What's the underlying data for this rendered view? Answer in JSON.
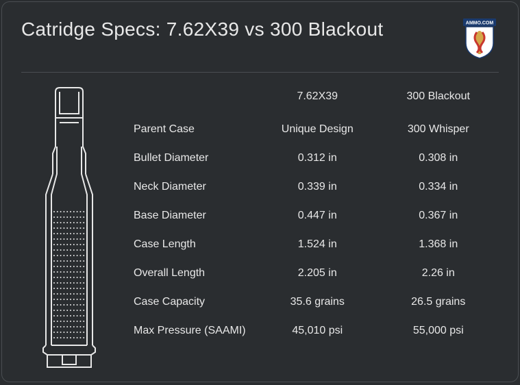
{
  "title": "Catridge Specs: 7.62X39 vs 300 Blackout",
  "logo": {
    "name": "ammo-com-logo",
    "colors": {
      "banner": "#1a3a6e",
      "banner_text": "#ffffff",
      "shield_border": "#1a3a6e",
      "shield_fill": "#ffffff",
      "figure": "#d4a84a",
      "serpent": "#c8372e"
    },
    "banner_text": "AMMO.COM"
  },
  "columns": {
    "col1": "7.62X39",
    "col2": "300 Blackout"
  },
  "specs": [
    {
      "label": "Parent Case",
      "col1": "Unique Design",
      "col2": "300 Whisper"
    },
    {
      "label": "Bullet Diameter",
      "col1": "0.312 in",
      "col2": "0.308 in"
    },
    {
      "label": "Neck Diameter",
      "col1": "0.339 in",
      "col2": "0.334 in"
    },
    {
      "label": "Base Diameter",
      "col1": "0.447 in",
      "col2": "0.367 in"
    },
    {
      "label": "Case Length",
      "col1": "1.524 in",
      "col2": "1.368 in"
    },
    {
      "label": "Overall Length",
      "col1": "2.205 in",
      "col2": "2.26 in"
    },
    {
      "label": "Case Capacity",
      "col1": "35.6 grains",
      "col2": "26.5 grains"
    },
    {
      "label": "Max Pressure (SAAMI)",
      "col1": "45,010 psi",
      "col2": "55,000 psi"
    }
  ],
  "style": {
    "background": "#2a2d30",
    "border_color": "#4a4e52",
    "text_color": "#e8e8e8",
    "cartridge_stroke": "#e8e8e8",
    "cartridge_fill": "none",
    "title_fontsize": 28,
    "label_fontsize": 16
  }
}
